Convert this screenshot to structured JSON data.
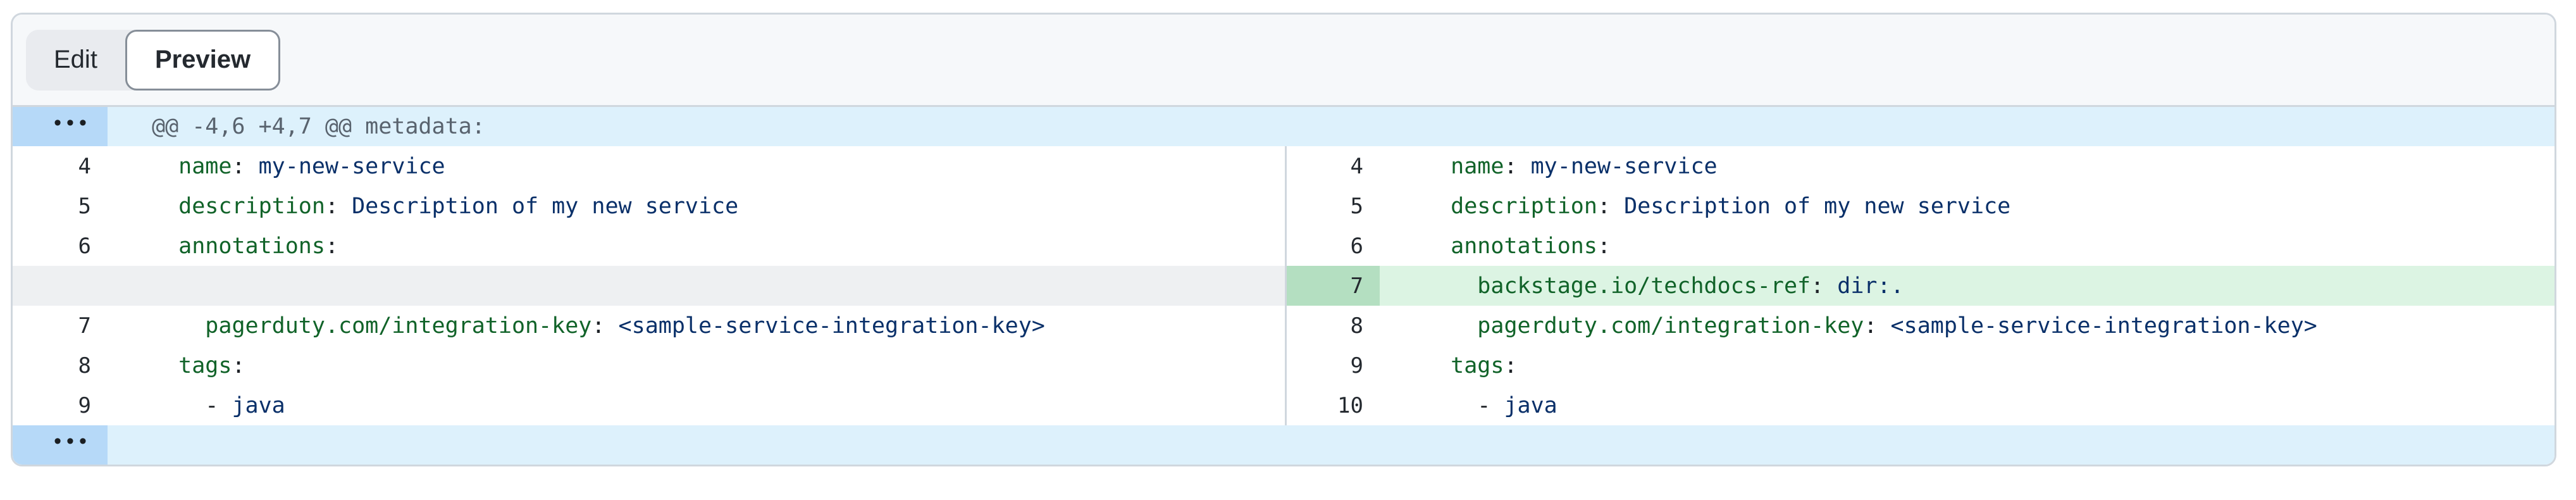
{
  "toolbar": {
    "edit_label": "Edit",
    "preview_label": "Preview"
  },
  "diff": {
    "hunk_header": "@@ -4,6 +4,7 @@ metadata:",
    "expander_dots": "•••",
    "footer_text": "",
    "rows": [
      {
        "left": {
          "num": "4",
          "tokens": [
            [
              "  ",
              "p"
            ],
            [
              "name",
              "k"
            ],
            [
              ": ",
              "p"
            ],
            [
              "my-new-service",
              "s"
            ]
          ]
        },
        "right": {
          "num": "4",
          "tokens": [
            [
              "  ",
              "p"
            ],
            [
              "name",
              "k"
            ],
            [
              ": ",
              "p"
            ],
            [
              "my-new-service",
              "s"
            ]
          ]
        }
      },
      {
        "left": {
          "num": "5",
          "tokens": [
            [
              "  ",
              "p"
            ],
            [
              "description",
              "k"
            ],
            [
              ": ",
              "p"
            ],
            [
              "Description of my new service",
              "s"
            ]
          ]
        },
        "right": {
          "num": "5",
          "tokens": [
            [
              "  ",
              "p"
            ],
            [
              "description",
              "k"
            ],
            [
              ": ",
              "p"
            ],
            [
              "Description of my new service",
              "s"
            ]
          ]
        }
      },
      {
        "left": {
          "num": "6",
          "tokens": [
            [
              "  ",
              "p"
            ],
            [
              "annotations",
              "k"
            ],
            [
              ":",
              "p"
            ]
          ]
        },
        "right": {
          "num": "6",
          "tokens": [
            [
              "  ",
              "p"
            ],
            [
              "annotations",
              "k"
            ],
            [
              ":",
              "p"
            ]
          ]
        }
      },
      {
        "left": null,
        "right": {
          "num": "7",
          "added": true,
          "tokens": [
            [
              "    ",
              "p"
            ],
            [
              "backstage.io/techdocs-ref",
              "k"
            ],
            [
              ": ",
              "p"
            ],
            [
              "dir:.",
              "s"
            ]
          ]
        }
      },
      {
        "left": {
          "num": "7",
          "tokens": [
            [
              "    ",
              "p"
            ],
            [
              "pagerduty.com/integration-key",
              "k"
            ],
            [
              ": ",
              "p"
            ],
            [
              "<sample-service-integration-key>",
              "s"
            ]
          ]
        },
        "right": {
          "num": "8",
          "tokens": [
            [
              "    ",
              "p"
            ],
            [
              "pagerduty.com/integration-key",
              "k"
            ],
            [
              ": ",
              "p"
            ],
            [
              "<sample-service-integration-key>",
              "s"
            ]
          ]
        }
      },
      {
        "left": {
          "num": "8",
          "tokens": [
            [
              "  ",
              "p"
            ],
            [
              "tags",
              "k"
            ],
            [
              ":",
              "p"
            ]
          ]
        },
        "right": {
          "num": "9",
          "tokens": [
            [
              "  ",
              "p"
            ],
            [
              "tags",
              "k"
            ],
            [
              ":",
              "p"
            ]
          ]
        }
      },
      {
        "left": {
          "num": "9",
          "tokens": [
            [
              "    - ",
              "p"
            ],
            [
              "java",
              "s"
            ]
          ]
        },
        "right": {
          "num": "10",
          "tokens": [
            [
              "    - ",
              "p"
            ],
            [
              "java",
              "s"
            ]
          ]
        }
      }
    ]
  },
  "colors": {
    "toolbar_bg": "#f6f8fa",
    "border": "#d0d7de",
    "hunk_bg": "#ddf1fc",
    "hunk_gutter_bg": "#b6d9f8",
    "hunk_text": "#59636e",
    "added_line_bg": "#dcf4e3",
    "added_gutter_bg": "#b4dfc1",
    "empty_line_bg": "#eef0f2",
    "yaml_key": "#116329",
    "yaml_string": "#0a3069",
    "code_text": "#1f2328"
  }
}
